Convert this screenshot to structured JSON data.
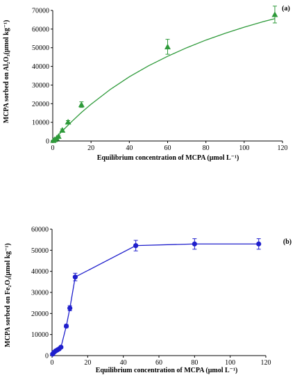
{
  "chart_data": [
    {
      "type": "scatter",
      "panel_label": "(a)",
      "xlabel": "Equilibrium concentration of MCPA (μmol L⁻¹)",
      "ylabel": "MCPA sorbed on Al₂O₃(μmol kg⁻¹)",
      "xlim": [
        0,
        120
      ],
      "ylim": [
        0,
        70000
      ],
      "x_ticks": [
        0,
        20,
        40,
        60,
        80,
        100,
        120
      ],
      "y_ticks": [
        0,
        10000,
        20000,
        30000,
        40000,
        50000,
        60000,
        70000
      ],
      "grid": false,
      "marker": "triangle",
      "color": "#2e9a3a",
      "fit_line_color": "#2e9a3a",
      "series": [
        {
          "x": [
            0.3,
            1,
            2,
            3,
            5,
            8,
            15,
            60,
            116
          ],
          "y": [
            300,
            800,
            1500,
            2500,
            5800,
            10200,
            19500,
            50500,
            67800
          ],
          "error": [
            150,
            200,
            300,
            400,
            600,
            800,
            1500,
            4000,
            4500
          ]
        }
      ],
      "fit": {
        "x": [
          0,
          5,
          10,
          15,
          20,
          30,
          40,
          50,
          60,
          70,
          80,
          90,
          100,
          110,
          116
        ],
        "y": [
          0,
          5400,
          10500,
          15300,
          19700,
          27600,
          34400,
          40300,
          45400,
          50000,
          54100,
          57700,
          61000,
          64000,
          65600
        ]
      }
    },
    {
      "type": "line",
      "panel_label": "(b)",
      "xlabel": "Equilibrium concentration of MCPA (μmol L⁻¹)",
      "ylabel": "MCPA sorbed on Fe₂O₃(μmol kg⁻¹)",
      "xlim": [
        0,
        120
      ],
      "ylim": [
        0,
        60000
      ],
      "x_ticks": [
        0,
        20,
        40,
        60,
        80,
        100,
        120
      ],
      "y_ticks": [
        0,
        10000,
        20000,
        30000,
        40000,
        50000,
        60000
      ],
      "grid": false,
      "marker": "circle",
      "color": "#1f1fcc",
      "series": [
        {
          "x": [
            0.3,
            1,
            2,
            3,
            4,
            5,
            8,
            10,
            13,
            47,
            80,
            116
          ],
          "y": [
            700,
            1500,
            2200,
            2700,
            3200,
            4000,
            14000,
            22500,
            37300,
            52200,
            53000,
            53000
          ],
          "error": [
            300,
            300,
            300,
            300,
            400,
            500,
            800,
            1200,
            1800,
            2500,
            2500,
            2500
          ]
        }
      ]
    }
  ]
}
